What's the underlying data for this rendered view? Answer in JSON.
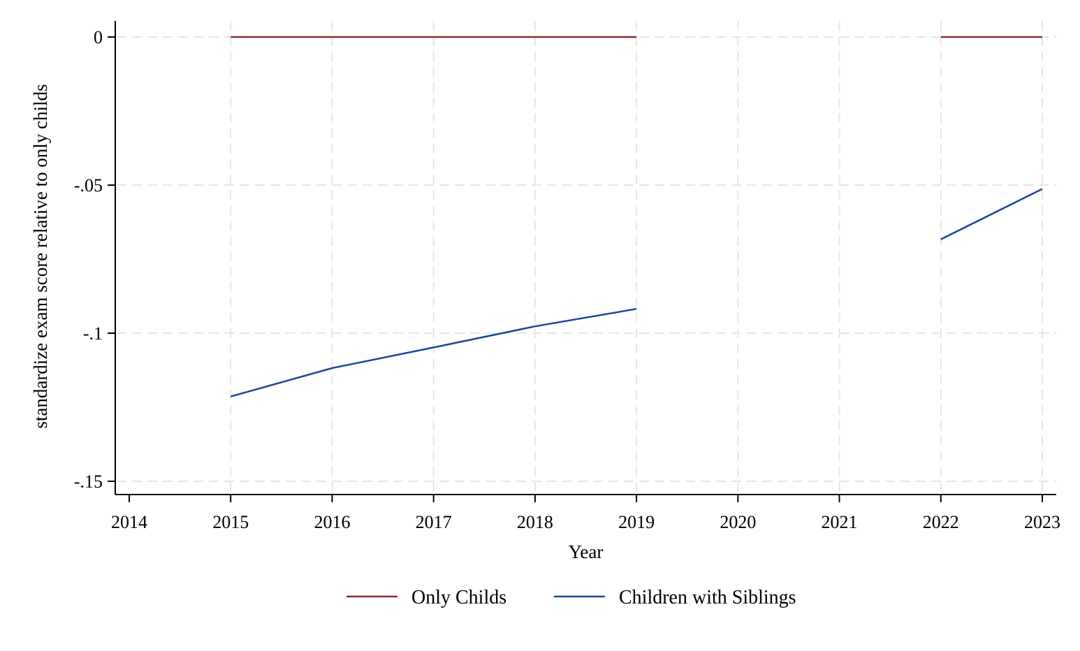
{
  "chart_data": {
    "type": "line",
    "title": "",
    "xlabel": "Year",
    "ylabel": "standardize exam score relative to only childs",
    "xlim": [
      2014,
      2023
    ],
    "ylim": [
      -0.155,
      0.003
    ],
    "x_ticks": [
      2014,
      2015,
      2016,
      2017,
      2018,
      2019,
      2020,
      2021,
      2022,
      2023
    ],
    "x_tick_labels": [
      "2014",
      "2015",
      "2016",
      "2017",
      "2018",
      "2019",
      "2020",
      "2021",
      "2022",
      "2023"
    ],
    "y_ticks": [
      0,
      -0.05,
      -0.1,
      -0.15
    ],
    "y_tick_labels": [
      "0",
      "-.05",
      "-.1",
      "-.15"
    ],
    "grid": true,
    "legend_position": "bottom",
    "series": [
      {
        "name": "Only Childs",
        "color": "#8c2a2e",
        "segments": [
          [
            [
              2015,
              0
            ],
            [
              2016,
              0
            ],
            [
              2017,
              0
            ],
            [
              2018,
              0
            ],
            [
              2019,
              0
            ]
          ],
          [
            [
              2022,
              0
            ],
            [
              2023,
              0
            ]
          ]
        ]
      },
      {
        "name": "Children with Siblings",
        "color": "#1a4796",
        "segments": [
          [
            [
              2015,
              -0.1214
            ],
            [
              2016,
              -0.1118
            ],
            [
              2017,
              -0.1048
            ],
            [
              2018,
              -0.0977
            ],
            [
              2019,
              -0.0918
            ]
          ],
          [
            [
              2022,
              -0.0683
            ],
            [
              2023,
              -0.0513
            ]
          ]
        ]
      }
    ]
  }
}
